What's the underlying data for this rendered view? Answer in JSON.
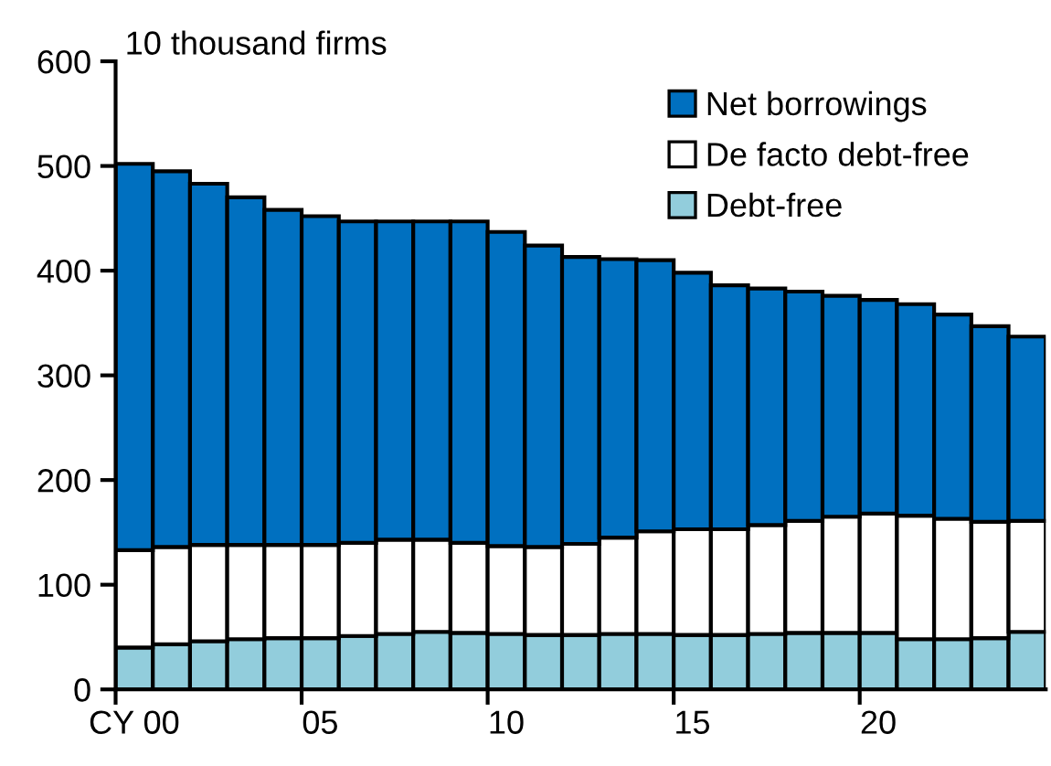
{
  "chart_data": {
    "type": "bar",
    "stacked": true,
    "ylabel": "10 thousand firms",
    "categories": [
      "CY 00",
      null,
      null,
      null,
      null,
      "05",
      null,
      null,
      null,
      null,
      "10",
      null,
      null,
      null,
      null,
      "15",
      null,
      null,
      null,
      null,
      "20",
      null,
      null,
      null,
      null
    ],
    "series": [
      {
        "name": "Debt-free",
        "color": "#92cddc",
        "values": [
          40,
          43,
          46,
          48,
          49,
          49,
          51,
          53,
          55,
          54,
          53,
          52,
          52,
          53,
          53,
          52,
          52,
          53,
          54,
          54,
          54,
          48,
          48,
          49,
          55
        ]
      },
      {
        "name": "De facto debt-free",
        "color": "#ffffff",
        "values": [
          93,
          93,
          92,
          90,
          89,
          89,
          89,
          90,
          88,
          86,
          84,
          84,
          87,
          92,
          98,
          101,
          101,
          104,
          107,
          111,
          114,
          118,
          115,
          111,
          106
        ]
      },
      {
        "name": "Net borrowings",
        "color": "#0070c0",
        "values": [
          369,
          359,
          345,
          332,
          320,
          314,
          307,
          304,
          304,
          307,
          300,
          288,
          274,
          266,
          259,
          245,
          233,
          226,
          219,
          211,
          204,
          202,
          195,
          187,
          176
        ]
      }
    ],
    "ylim": [
      0,
      600
    ],
    "yticks": [
      0,
      100,
      200,
      300,
      400,
      500,
      600
    ],
    "grid": false,
    "legend": "top right"
  }
}
